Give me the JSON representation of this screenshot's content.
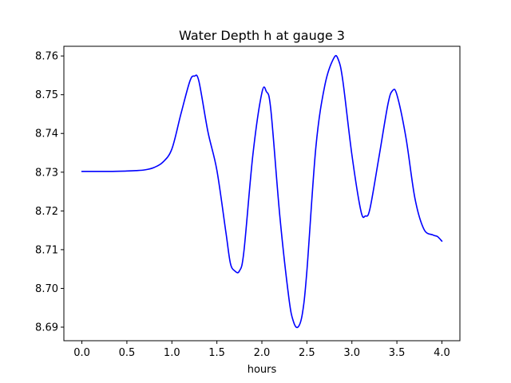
{
  "chart_data": {
    "type": "line",
    "title": "Water Depth h at gauge 3",
    "xlabel": "hours",
    "ylabel": "",
    "xlim": [
      -0.2,
      4.2
    ],
    "ylim": [
      8.6865,
      8.7625
    ],
    "xticks": [
      0.0,
      0.5,
      1.0,
      1.5,
      2.0,
      2.5,
      3.0,
      3.5,
      4.0
    ],
    "xtick_labels": [
      "0.0",
      "0.5",
      "1.0",
      "1.5",
      "2.0",
      "2.5",
      "3.0",
      "3.5",
      "4.0"
    ],
    "yticks": [
      8.69,
      8.7,
      8.71,
      8.72,
      8.73,
      8.74,
      8.75,
      8.76
    ],
    "ytick_labels": [
      "8.69",
      "8.70",
      "8.71",
      "8.72",
      "8.73",
      "8.74",
      "8.75",
      "8.76"
    ],
    "grid": false,
    "color": "#0000ff",
    "series": [
      {
        "x": [
          0.0,
          0.3,
          0.5,
          0.6,
          0.7,
          0.8,
          0.9,
          1.0,
          1.1,
          1.2,
          1.25,
          1.3,
          1.4,
          1.5,
          1.6,
          1.65,
          1.7,
          1.75,
          1.8,
          1.9,
          2.0,
          2.05,
          2.1,
          2.2,
          2.3,
          2.35,
          2.4,
          2.45,
          2.5,
          2.6,
          2.7,
          2.8,
          2.85,
          2.9,
          3.0,
          3.1,
          3.15,
          3.2,
          3.3,
          3.4,
          3.45,
          3.5,
          3.6,
          3.7,
          3.8,
          3.9,
          3.95,
          4.0
        ],
        "y": [
          8.7302,
          8.7302,
          8.7303,
          8.7304,
          8.7306,
          8.7312,
          8.7326,
          8.736,
          8.745,
          8.7535,
          8.7548,
          8.7535,
          8.7405,
          8.7305,
          8.7145,
          8.7065,
          8.7045,
          8.7045,
          8.7095,
          8.7345,
          8.7505,
          8.7508,
          8.746,
          8.7185,
          8.6975,
          8.6915,
          8.69,
          8.6935,
          8.7045,
          8.7365,
          8.7525,
          8.7595,
          8.759,
          8.7535,
          8.7345,
          8.72,
          8.7187,
          8.7205,
          8.7338,
          8.7475,
          8.751,
          8.75,
          8.739,
          8.7233,
          8.7153,
          8.7138,
          8.7134,
          8.7122
        ]
      }
    ]
  }
}
